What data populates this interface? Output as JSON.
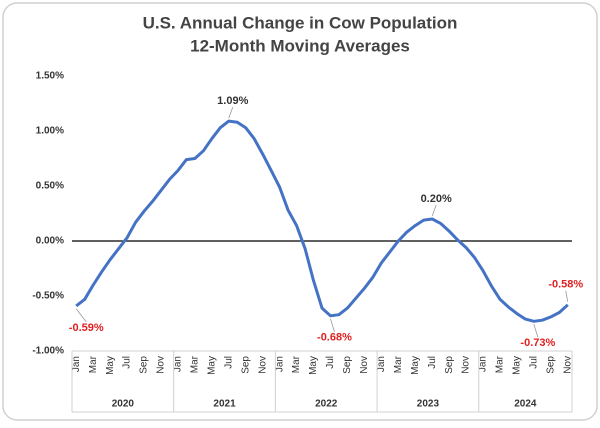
{
  "chart_data": {
    "type": "line",
    "title": "U.S. Annual Change in Cow Population",
    "subtitle": "12-Month Moving Averages",
    "categories": [
      "Jan",
      null,
      "Mar",
      null,
      "May",
      null,
      "Jul",
      null,
      "Sep",
      null,
      "Nov",
      null,
      "Jan",
      null,
      "Mar",
      null,
      "May",
      null,
      "Jul",
      null,
      "Sep",
      null,
      "Nov",
      null,
      "Jan",
      null,
      "Mar",
      null,
      "May",
      null,
      "Jul",
      null,
      "Sep",
      null,
      "Nov",
      null,
      "Jan",
      null,
      "Mar",
      null,
      "May",
      null,
      "Jul",
      null,
      "Sep",
      null,
      "Nov",
      null,
      "Jan",
      null,
      "Mar",
      null,
      "May",
      null,
      "Jul",
      null,
      "Sep",
      null,
      "Nov"
    ],
    "years": [
      "2020",
      "2021",
      "2022",
      "2023",
      "2024"
    ],
    "series": [
      {
        "color": "#4472c4",
        "values": [
          -0.59,
          -0.53,
          -0.4,
          -0.28,
          -0.17,
          -0.07,
          0.03,
          0.17,
          0.27,
          0.36,
          0.46,
          0.56,
          0.64,
          0.74,
          0.75,
          0.82,
          0.93,
          1.03,
          1.09,
          1.08,
          1.03,
          0.93,
          0.79,
          0.64,
          0.49,
          0.28,
          0.14,
          -0.07,
          -0.36,
          -0.61,
          -0.68,
          -0.67,
          -0.61,
          -0.52,
          -0.43,
          -0.33,
          -0.2,
          -0.1,
          0.0,
          0.08,
          0.14,
          0.19,
          0.2,
          0.16,
          0.09,
          0.01,
          -0.06,
          -0.15,
          -0.27,
          -0.41,
          -0.53,
          -0.6,
          -0.66,
          -0.71,
          -0.73,
          -0.72,
          -0.69,
          -0.65,
          -0.58
        ],
        "value_labels": [
          "-0.59%",
          null,
          null,
          null,
          null,
          null,
          null,
          null,
          null,
          null,
          null,
          null,
          null,
          null,
          null,
          null,
          null,
          null,
          "1.09%",
          null,
          null,
          null,
          null,
          null,
          null,
          null,
          null,
          null,
          null,
          null,
          "-0.68%",
          null,
          null,
          null,
          null,
          null,
          null,
          null,
          null,
          null,
          null,
          null,
          "0.20%",
          null,
          null,
          null,
          null,
          null,
          null,
          null,
          null,
          null,
          null,
          null,
          "-0.73%",
          null,
          null,
          null,
          "-0.58%"
        ]
      }
    ],
    "ylim": [
      -1.0,
      1.5
    ],
    "yticks": [
      {
        "value": -1.0,
        "label": "-1.00%"
      },
      {
        "value": -0.5,
        "label": "-0.50%"
      },
      {
        "value": 0,
        "label": "0.00%"
      },
      {
        "value": 0.5,
        "label": "0.50%"
      },
      {
        "value": 1.0,
        "label": "1.00%"
      },
      {
        "value": 1.5,
        "label": "1.50%"
      }
    ],
    "positive_label_color": "#333333",
    "negative_label_color": "#e02020",
    "zero_line_color": "#000000"
  }
}
